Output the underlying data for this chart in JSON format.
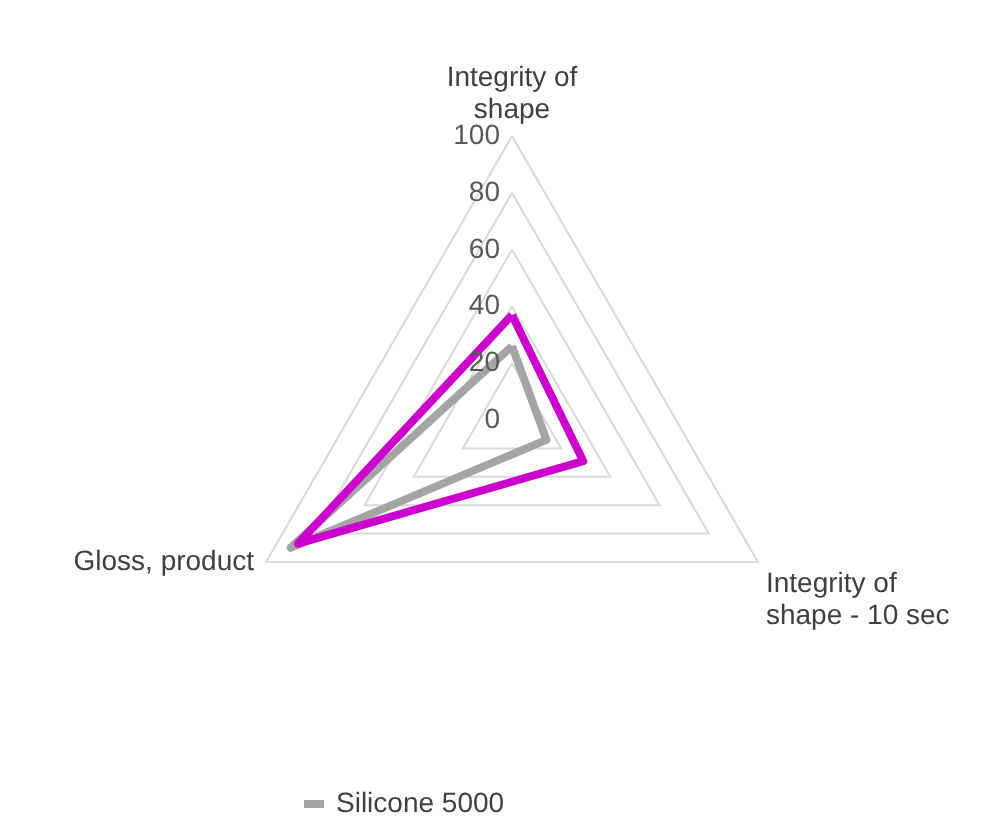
{
  "chart_data": {
    "type": "radar",
    "categories": [
      "Integrity of\nshape",
      "Integrity of\nshape - 10 sec",
      "Gloss, product"
    ],
    "series": [
      {
        "name": "Silicone 5000",
        "color": "#a5a5a5",
        "values": [
          26,
          14,
          90
        ]
      },
      {
        "color": "#cc00cc",
        "values": [
          37,
          29,
          87
        ]
      }
    ],
    "ylim": [
      0,
      100
    ],
    "yticks": [
      0,
      20,
      40,
      60,
      80,
      100
    ],
    "grid": true,
    "legend": "bottom"
  }
}
